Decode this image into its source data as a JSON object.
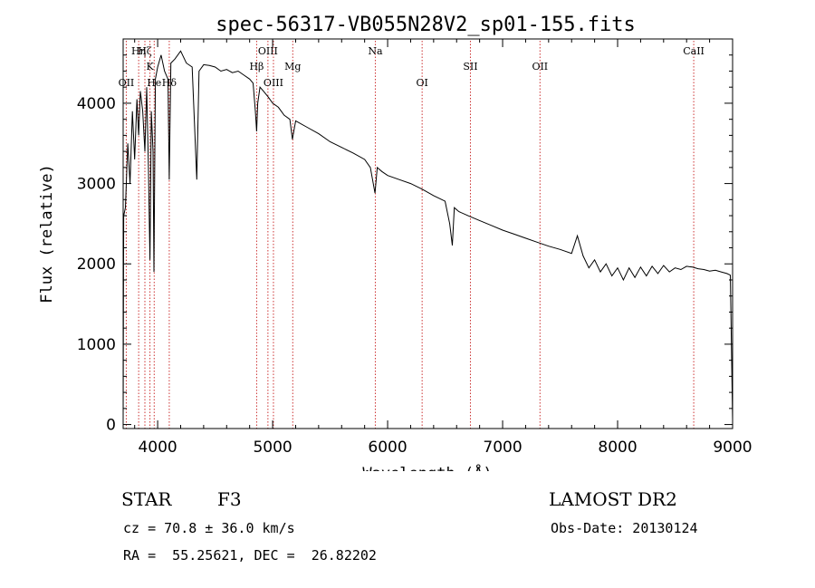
{
  "chart_data": {
    "type": "line",
    "title": "spec-56317-VB055N28V2_sp01-155.fits",
    "xlabel": "Wavelength (Å)",
    "ylabel": "Flux (relative)",
    "xlim": [
      3700,
      9000
    ],
    "ylim": [
      -50,
      4800
    ],
    "xticks": [
      4000,
      5000,
      6000,
      7000,
      8000,
      9000
    ],
    "yticks": [
      0,
      1000,
      2000,
      3000,
      4000
    ],
    "xtick_labels": [
      "4000",
      "5000",
      "6000",
      "7000",
      "8000",
      "9000"
    ],
    "ytick_labels": [
      "0",
      "1000",
      "2000",
      "3000",
      "4000"
    ],
    "spectrum": {
      "name": "flux",
      "x": [
        3700,
        3705,
        3720,
        3740,
        3760,
        3780,
        3800,
        3820,
        3835,
        3850,
        3870,
        3889,
        3905,
        3920,
        3933,
        3945,
        3960,
        3968,
        3980,
        4000,
        4030,
        4060,
        4090,
        4101,
        4115,
        4150,
        4200,
        4250,
        4300,
        4340,
        4360,
        4400,
        4450,
        4500,
        4550,
        4600,
        4650,
        4700,
        4750,
        4800,
        4830,
        4850,
        4861,
        4870,
        4890,
        4920,
        4960,
        5000,
        5050,
        5100,
        5150,
        5172,
        5200,
        5300,
        5400,
        5500,
        5600,
        5700,
        5800,
        5850,
        5890,
        5910,
        5950,
        6000,
        6100,
        6200,
        6300,
        6400,
        6500,
        6540,
        6563,
        6580,
        6620,
        6700,
        6800,
        6900,
        7000,
        7100,
        7200,
        7300,
        7400,
        7500,
        7600,
        7650,
        7700,
        7750,
        7800,
        7850,
        7900,
        7950,
        8000,
        8050,
        8100,
        8150,
        8200,
        8250,
        8300,
        8350,
        8400,
        8450,
        8500,
        8550,
        8600,
        8650,
        8700,
        8750,
        8800,
        8850,
        8900,
        8950,
        8980,
        9000
      ],
      "y": [
        50,
        2600,
        2700,
        3500,
        3000,
        3900,
        3300,
        4050,
        3600,
        4150,
        3900,
        3400,
        4200,
        3200,
        2050,
        3900,
        3400,
        1900,
        4300,
        4450,
        4600,
        4400,
        4300,
        3050,
        4500,
        4550,
        4650,
        4500,
        4450,
        3050,
        4400,
        4480,
        4470,
        4450,
        4400,
        4420,
        4380,
        4400,
        4350,
        4300,
        4250,
        3900,
        3650,
        4000,
        4200,
        4150,
        4080,
        4000,
        3950,
        3850,
        3800,
        3550,
        3780,
        3700,
        3620,
        3520,
        3450,
        3380,
        3300,
        3200,
        2880,
        3200,
        3150,
        3100,
        3050,
        3000,
        2930,
        2850,
        2780,
        2500,
        2230,
        2700,
        2650,
        2600,
        2540,
        2480,
        2420,
        2370,
        2320,
        2270,
        2220,
        2180,
        2130,
        2350,
        2100,
        1950,
        2050,
        1900,
        2000,
        1850,
        1950,
        1800,
        1950,
        1830,
        1960,
        1850,
        1970,
        1880,
        1980,
        1900,
        1950,
        1930,
        1970,
        1960,
        1940,
        1930,
        1910,
        1920,
        1900,
        1880,
        1860,
        50
      ]
    },
    "emission_lines": [
      {
        "label": "Hη",
        "wavelength": 3835,
        "row": 0
      },
      {
        "label": "Hζ",
        "wavelength": 3889,
        "row": 0
      },
      {
        "label": "K",
        "wavelength": 3933,
        "row": 1
      },
      {
        "label": "OII",
        "wavelength": 3727,
        "row": 2
      },
      {
        "label": "He",
        "wavelength": 3970,
        "row": 2
      },
      {
        "label": "Hδ",
        "wavelength": 4101,
        "row": 2
      },
      {
        "label": "Hβ",
        "wavelength": 4861,
        "row": 1
      },
      {
        "label": "OIII",
        "wavelength": 4959,
        "row": 0
      },
      {
        "label": "OIII",
        "wavelength": 5007,
        "row": 2
      },
      {
        "label": "Mg",
        "wavelength": 5175,
        "row": 1
      },
      {
        "label": "Na",
        "wavelength": 5893,
        "row": 0
      },
      {
        "label": "OI",
        "wavelength": 6300,
        "row": 2
      },
      {
        "label": "OII",
        "wavelength": 7325,
        "row": 1
      },
      {
        "label": "SII",
        "wavelength": 6720,
        "row": 1
      },
      {
        "label": "CaII",
        "wavelength": 8662,
        "row": 0
      }
    ]
  },
  "info": {
    "object_class": "STAR",
    "subclass": "F3",
    "cz": "cz = 70.8 ± 36.0 km/s",
    "radec": "RA =  55.25621, DEC =  26.82202",
    "survey": "LAMOST DR2",
    "obs_date": "Obs-Date: 20130124"
  },
  "colors": {
    "axis": "#000000",
    "spectrum": "#000000",
    "line_marker": "#cc3333"
  }
}
